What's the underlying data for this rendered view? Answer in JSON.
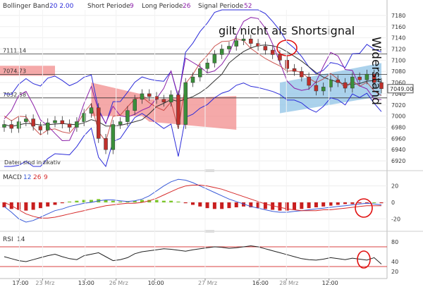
{
  "colors": {
    "bollinger": "#2b2bd9",
    "period_lines": "#8b1fa8",
    "price_up": "#3a8f3a",
    "price_down": "#c0302b",
    "kumo_red": "#f28c8c",
    "kumo_blue": "#8fc3e6",
    "macd_line": "#3a5bd8",
    "signal_line": "#d62a2a",
    "hist_pos": "#7cc62a",
    "hist_neg": "#c81e1e",
    "annotation": "#e01010",
    "rsi_line": "#222222",
    "rsi_bands": "#d94040"
  },
  "header": {
    "bollinger_label": "Bollinger Band",
    "bollinger_params": "20  2.00",
    "short_label": "Short Periode",
    "short_value": "9",
    "long_label": "Long Periode",
    "long_value": "26",
    "signal_label": "Signal Periode",
    "signal_value": "52"
  },
  "annotations": {
    "shortsignal_text": "gilt nicht als Shortsignal",
    "resistance_text": "Widerstand",
    "data_note": "Daten sind indikativ"
  },
  "chart_data": [
    {
      "panel": "price",
      "type": "candlestick",
      "ylim": [
        6910,
        7190
      ],
      "ticks": [
        7180,
        7160,
        7140,
        7120,
        7100,
        7080,
        7060,
        7040,
        7020,
        7000,
        6980,
        6960,
        6940,
        6920
      ],
      "horizontal_levels": [
        {
          "label": "7111.14",
          "value": 7111.14
        },
        {
          "label": "7074.73",
          "value": 7074.73
        },
        {
          "label": "7032.58",
          "value": 7032.58
        }
      ],
      "last_price": {
        "label": "7049.00",
        "value": 7049.0
      },
      "candles_approx_close": [
        6985,
        6978,
        6990,
        6995,
        6982,
        6975,
        6988,
        6992,
        6986,
        6980,
        6990,
        7005,
        7015,
        6960,
        6940,
        6985,
        6990,
        7010,
        7030,
        7040,
        7035,
        7030,
        7025,
        7038,
        6985,
        7060,
        7070,
        7085,
        7095,
        7110,
        7120,
        7125,
        7135,
        7138,
        7130,
        7125,
        7118,
        7110,
        7100,
        7085,
        7080,
        7070,
        7055,
        7045,
        7052,
        7065,
        7060,
        7050,
        7070,
        7065,
        7075,
        7060,
        7049
      ]
    },
    {
      "panel": "macd",
      "type": "line+bar",
      "title": "MACD",
      "params": [
        "12",
        "26",
        "9"
      ],
      "ylim": [
        -30,
        30
      ],
      "ticks": [
        20,
        0,
        -20
      ],
      "histogram_approx": [
        -6,
        -8,
        -9,
        -10,
        -9,
        -7,
        -5,
        -3,
        -1,
        1,
        2,
        3,
        3,
        4,
        3,
        2,
        1,
        1,
        2,
        3,
        3,
        3,
        2,
        2,
        1,
        -1,
        -3,
        -5,
        -7,
        -8,
        -8,
        -7,
        -6,
        -5,
        -6,
        -7,
        -8,
        -9,
        -10,
        -10,
        -9,
        -8,
        -7,
        -6,
        -5,
        -4,
        -3,
        -2,
        -2,
        -1,
        -1,
        0,
        -1
      ],
      "macd_approx": [
        -5,
        -12,
        -20,
        -24,
        -22,
        -18,
        -14,
        -10,
        -8,
        -5,
        -3,
        -1,
        0,
        2,
        3,
        3,
        2,
        1,
        2,
        4,
        8,
        14,
        20,
        25,
        28,
        27,
        24,
        20,
        16,
        12,
        8,
        4,
        1,
        -2,
        -5,
        -7,
        -9,
        -11,
        -12,
        -12,
        -11,
        -10,
        -9,
        -8,
        -7,
        -6,
        -5,
        -4,
        -3,
        -2,
        -1,
        -2,
        -3
      ],
      "signal_approx": [
        0,
        -4,
        -9,
        -14,
        -17,
        -19,
        -19,
        -18,
        -16,
        -14,
        -12,
        -10,
        -8,
        -6,
        -4,
        -3,
        -2,
        -1,
        -1,
        0,
        2,
        5,
        9,
        13,
        17,
        20,
        21,
        21,
        20,
        18,
        16,
        13,
        10,
        7,
        4,
        1,
        -2,
        -4,
        -6,
        -8,
        -9,
        -10,
        -10,
        -10,
        -9,
        -9,
        -8,
        -7,
        -6,
        -5,
        -4,
        -4,
        -4
      ]
    },
    {
      "panel": "rsi",
      "type": "line",
      "title": "RSI",
      "params": [
        "14"
      ],
      "ylim": [
        10,
        90
      ],
      "ticks": [
        80,
        40,
        20
      ],
      "bands": [
        70,
        30
      ],
      "values_approx": [
        50,
        46,
        42,
        40,
        44,
        48,
        52,
        55,
        50,
        46,
        44,
        52,
        55,
        58,
        50,
        42,
        44,
        48,
        56,
        60,
        62,
        64,
        66,
        65,
        63,
        61,
        64,
        66,
        68,
        70,
        69,
        67,
        68,
        70,
        72,
        70,
        66,
        62,
        58,
        54,
        50,
        46,
        44,
        43,
        45,
        48,
        46,
        44,
        47,
        45,
        43,
        48,
        35
      ]
    }
  ],
  "x_axis": {
    "labels": [
      "17:00",
      "23 Mrz",
      "13:00",
      "26 Mrz",
      "10:00",
      "27 Mrz",
      "16:00",
      "28 Mrz",
      "12:00"
    ],
    "positions_data": [
      0.05,
      0.11,
      0.22,
      0.3,
      0.4,
      0.53,
      0.67,
      0.74,
      0.85
    ]
  }
}
